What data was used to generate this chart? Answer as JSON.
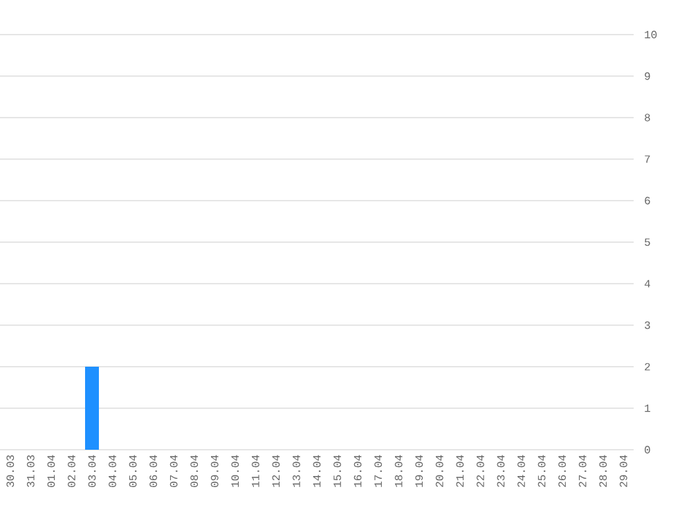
{
  "chart_data": {
    "type": "bar",
    "categories": [
      "30.03",
      "31.03",
      "01.04",
      "02.04",
      "03.04",
      "04.04",
      "05.04",
      "06.04",
      "07.04",
      "08.04",
      "09.04",
      "10.04",
      "11.04",
      "12.04",
      "13.04",
      "14.04",
      "15.04",
      "16.04",
      "17.04",
      "18.04",
      "19.04",
      "20.04",
      "21.04",
      "22.04",
      "23.04",
      "24.04",
      "25.04",
      "26.04",
      "27.04",
      "28.04",
      "29.04"
    ],
    "values": [
      0,
      0,
      0,
      0,
      2,
      0,
      0,
      0,
      0,
      0,
      0,
      0,
      0,
      0,
      0,
      0,
      0,
      0,
      0,
      0,
      0,
      0,
      0,
      0,
      0,
      0,
      0,
      0,
      0,
      0,
      0
    ],
    "color": "#1e90ff",
    "ylim": [
      0,
      10
    ],
    "yticks": [
      0,
      1,
      2,
      3,
      4,
      5,
      6,
      7,
      8,
      9,
      10
    ],
    "grid": "y"
  }
}
